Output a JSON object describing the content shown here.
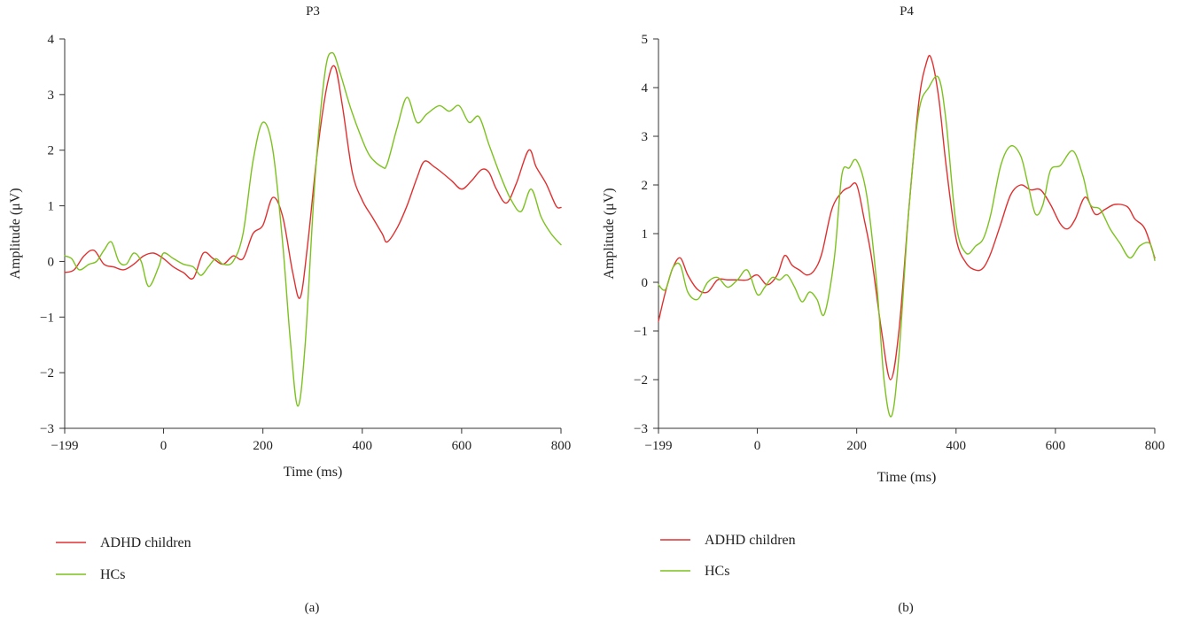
{
  "chart_data": [
    {
      "type": "line",
      "title": "P3",
      "caption": "(a)",
      "xlabel": "Time (ms)",
      "ylabel": "Amplitude (μV)",
      "xlim": [
        -199,
        800
      ],
      "ylim": [
        -3,
        4
      ],
      "xticks": [
        -199,
        0,
        200,
        400,
        600,
        800
      ],
      "yticks": [
        -3,
        -2,
        -1,
        0,
        1,
        2,
        3,
        4
      ],
      "xtick_labels": [
        "−199",
        "0",
        "200",
        "400",
        "600",
        "800"
      ],
      "ytick_labels": [
        "−3",
        "−2",
        "−1",
        "0",
        "1",
        "2",
        "3",
        "4"
      ],
      "legend_position": "bottom-left",
      "series": [
        {
          "name": "ADHD children",
          "color": "#e03030",
          "x": [
            -199,
            -180,
            -160,
            -140,
            -120,
            -100,
            -80,
            -60,
            -40,
            -20,
            0,
            20,
            40,
            60,
            80,
            100,
            120,
            140,
            160,
            180,
            200,
            220,
            240,
            260,
            275,
            290,
            310,
            330,
            345,
            360,
            380,
            400,
            420,
            440,
            450,
            470,
            490,
            510,
            525,
            545,
            560,
            580,
            600,
            620,
            640,
            655,
            670,
            690,
            710,
            735,
            750,
            770,
            790,
            800
          ],
          "y": [
            -0.2,
            -0.15,
            0.1,
            0.2,
            -0.05,
            -0.1,
            -0.15,
            -0.05,
            0.1,
            0.15,
            0.05,
            -0.1,
            -0.2,
            -0.3,
            0.15,
            0.05,
            -0.05,
            0.1,
            0.05,
            0.5,
            0.65,
            1.15,
            0.8,
            -0.2,
            -0.65,
            0.3,
            2.0,
            3.2,
            3.5,
            2.8,
            1.6,
            1.1,
            0.8,
            0.5,
            0.35,
            0.6,
            1.0,
            1.5,
            1.8,
            1.7,
            1.6,
            1.45,
            1.3,
            1.45,
            1.65,
            1.6,
            1.3,
            1.05,
            1.4,
            2.0,
            1.7,
            1.4,
            1.0,
            0.97
          ]
        },
        {
          "name": "HCs",
          "color": "#7cc21e",
          "x": [
            -199,
            -185,
            -170,
            -150,
            -135,
            -120,
            -105,
            -90,
            -75,
            -60,
            -45,
            -30,
            -10,
            0,
            20,
            40,
            60,
            75,
            90,
            105,
            120,
            140,
            160,
            180,
            200,
            220,
            240,
            255,
            270,
            285,
            305,
            325,
            340,
            355,
            375,
            395,
            415,
            440,
            450,
            470,
            490,
            510,
            530,
            555,
            575,
            595,
            615,
            635,
            655,
            680,
            700,
            720,
            740,
            760,
            780,
            800
          ],
          "y": [
            0.1,
            0.05,
            -0.15,
            -0.05,
            0.0,
            0.2,
            0.35,
            0.0,
            -0.05,
            0.15,
            0.0,
            -0.45,
            -0.1,
            0.15,
            0.05,
            -0.05,
            -0.1,
            -0.25,
            -0.1,
            0.05,
            -0.05,
            0.0,
            0.5,
            1.8,
            2.5,
            2.0,
            0.3,
            -1.4,
            -2.6,
            -1.5,
            1.5,
            3.4,
            3.75,
            3.4,
            2.8,
            2.3,
            1.9,
            1.7,
            1.75,
            2.4,
            2.95,
            2.5,
            2.65,
            2.8,
            2.7,
            2.8,
            2.5,
            2.6,
            2.1,
            1.5,
            1.1,
            0.9,
            1.3,
            0.8,
            0.5,
            0.3
          ]
        }
      ]
    },
    {
      "type": "line",
      "title": "P4",
      "caption": "(b)",
      "xlabel": "Time (ms)",
      "ylabel": "Amplitude (μV)",
      "xlim": [
        -199,
        800
      ],
      "ylim": [
        -3,
        5
      ],
      "xticks": [
        -199,
        0,
        200,
        400,
        600,
        800
      ],
      "yticks": [
        -3,
        -2,
        -1,
        0,
        1,
        2,
        3,
        4,
        5
      ],
      "xtick_labels": [
        "−199",
        "0",
        "200",
        "400",
        "600",
        "800"
      ],
      "ytick_labels": [
        "−3",
        "−2",
        "−1",
        "0",
        "1",
        "2",
        "3",
        "4",
        "5"
      ],
      "legend_position": "bottom-left",
      "series": [
        {
          "name": "ADHD children",
          "color": "#e03030",
          "x": [
            -199,
            -185,
            -170,
            -155,
            -140,
            -120,
            -100,
            -80,
            -60,
            -40,
            -20,
            0,
            20,
            40,
            55,
            70,
            85,
            100,
            115,
            130,
            150,
            170,
            185,
            200,
            215,
            230,
            250,
            268,
            285,
            305,
            325,
            340,
            350,
            365,
            380,
            400,
            420,
            440,
            455,
            470,
            490,
            510,
            530,
            550,
            570,
            590,
            610,
            625,
            640,
            660,
            680,
            700,
            720,
            745,
            760,
            780,
            800
          ],
          "y": [
            -0.8,
            -0.2,
            0.3,
            0.5,
            0.15,
            -0.15,
            -0.2,
            0.05,
            0.05,
            0.05,
            0.05,
            0.15,
            -0.05,
            0.15,
            0.55,
            0.35,
            0.25,
            0.15,
            0.25,
            0.6,
            1.5,
            1.85,
            1.95,
            2.0,
            1.3,
            0.5,
            -1.0,
            -2.0,
            -1.0,
            1.5,
            3.7,
            4.5,
            4.6,
            3.8,
            2.4,
            0.9,
            0.4,
            0.25,
            0.3,
            0.6,
            1.2,
            1.8,
            2.0,
            1.9,
            1.9,
            1.6,
            1.2,
            1.1,
            1.3,
            1.75,
            1.4,
            1.5,
            1.6,
            1.55,
            1.3,
            1.1,
            0.5
          ]
        },
        {
          "name": "HCs",
          "color": "#7cc21e",
          "x": [
            -199,
            -185,
            -170,
            -155,
            -140,
            -120,
            -100,
            -80,
            -60,
            -40,
            -20,
            0,
            15,
            30,
            45,
            60,
            75,
            90,
            105,
            120,
            135,
            155,
            170,
            185,
            200,
            220,
            240,
            255,
            270,
            285,
            305,
            325,
            345,
            365,
            380,
            400,
            420,
            440,
            455,
            470,
            490,
            510,
            530,
            545,
            560,
            575,
            590,
            610,
            635,
            655,
            670,
            690,
            710,
            730,
            750,
            770,
            790,
            800
          ],
          "y": [
            -0.05,
            -0.15,
            0.3,
            0.35,
            -0.2,
            -0.35,
            0.0,
            0.1,
            -0.1,
            0.05,
            0.25,
            -0.25,
            -0.1,
            0.1,
            0.05,
            0.15,
            -0.1,
            -0.4,
            -0.2,
            -0.35,
            -0.65,
            0.5,
            2.2,
            2.35,
            2.5,
            1.8,
            0.0,
            -2.0,
            -2.75,
            -1.5,
            1.5,
            3.5,
            4.0,
            4.2,
            3.3,
            1.2,
            0.6,
            0.75,
            0.9,
            1.4,
            2.4,
            2.8,
            2.6,
            2.0,
            1.4,
            1.6,
            2.3,
            2.4,
            2.7,
            2.2,
            1.6,
            1.5,
            1.1,
            0.8,
            0.5,
            0.75,
            0.8,
            0.45
          ]
        }
      ]
    }
  ]
}
